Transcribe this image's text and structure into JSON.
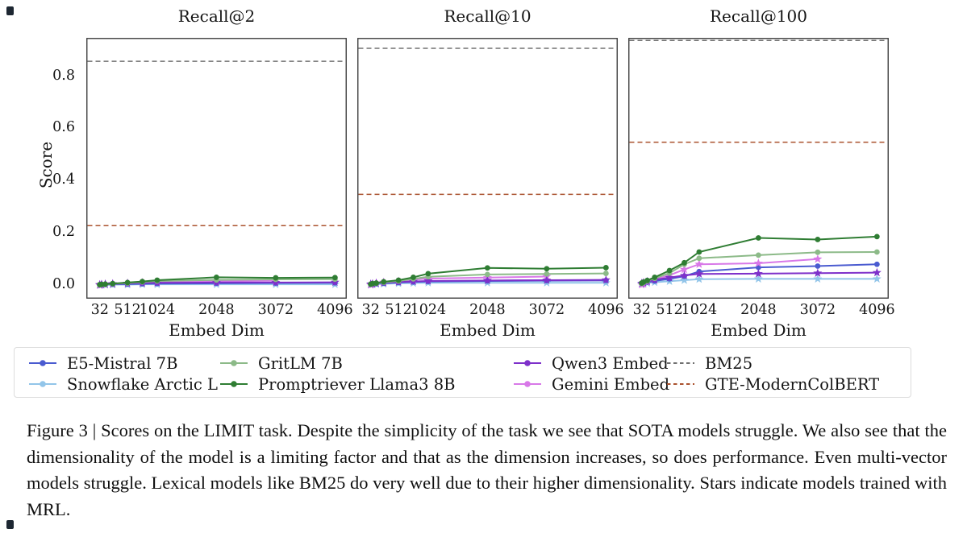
{
  "figure": {
    "caption": "Figure 3 | Scores on the LIMIT task. Despite the simplicity of the task we see that SOTA models struggle. We also see that the dimensionality of the model is a limiting factor and that as the dimension increases, so does performance. Even multi-vector models struggle. Lexical models like BM25 do very well due to their higher dimensionality. Stars indicate models trained with MRL."
  },
  "axes": {
    "y_label": "Score",
    "x_label": "Embed Dim",
    "x_ticks": [
      32,
      512,
      1024,
      2048,
      3072,
      4096
    ],
    "y_ticks": [
      "0.0",
      "0.2",
      "0.4",
      "0.6",
      "0.8"
    ],
    "xlim": [
      -200,
      4300
    ],
    "ylim": [
      -0.05,
      0.95
    ],
    "grid": false
  },
  "legend": {
    "position": "below",
    "entries": [
      {
        "label": "E5-Mistral 7B",
        "color": "#4a5bd0",
        "marker": "circle",
        "style": "solid"
      },
      {
        "label": "Snowflake Arctic L",
        "color": "#92c5e9",
        "marker": "star",
        "style": "solid"
      },
      {
        "label": "GritLM 7B",
        "color": "#8cba88",
        "marker": "circle",
        "style": "solid"
      },
      {
        "label": "Promptriever Llama3 8B",
        "color": "#2f7d33",
        "marker": "circle",
        "style": "solid"
      },
      {
        "label": "Qwen3 Embed",
        "color": "#7e30ca",
        "marker": "star",
        "style": "solid"
      },
      {
        "label": "Gemini Embed",
        "color": "#d878e8",
        "marker": "star",
        "style": "solid"
      },
      {
        "label": "BM25",
        "color": "#707070",
        "marker": "none",
        "style": "dashed"
      },
      {
        "label": "GTE-ModernColBERT",
        "color": "#aa512d",
        "marker": "none",
        "style": "dashed"
      }
    ]
  },
  "chart_data": [
    {
      "type": "line",
      "title": "Recall@2",
      "xlabel": "Embed Dim",
      "ylabel": "Score",
      "baselines": [
        {
          "name": "BM25",
          "value": 0.86
        },
        {
          "name": "GTE-ModernColBERT",
          "value": 0.23
        }
      ],
      "series": [
        {
          "name": "E5-Mistral 7B",
          "x": [
            32,
            64,
            128,
            256,
            512,
            768,
            1024,
            2048,
            3072,
            4096
          ],
          "y": [
            0.003,
            0.004,
            0.004,
            0.005,
            0.006,
            0.007,
            0.008,
            0.009,
            0.01,
            0.011
          ]
        },
        {
          "name": "Snowflake Arctic L",
          "x": [
            32,
            64,
            128,
            256,
            512,
            768,
            1024,
            2048,
            3072,
            4096
          ],
          "y": [
            0.002,
            0.003,
            0.003,
            0.004,
            0.004,
            0.005,
            0.005,
            0.005,
            0.005,
            0.005
          ]
        },
        {
          "name": "GritLM 7B",
          "x": [
            32,
            64,
            128,
            256,
            512,
            768,
            1024,
            2048,
            3072,
            4096
          ],
          "y": [
            0.003,
            0.004,
            0.005,
            0.007,
            0.01,
            0.014,
            0.018,
            0.022,
            0.024,
            0.025
          ]
        },
        {
          "name": "Promptriever Llama3 8B",
          "x": [
            32,
            64,
            128,
            256,
            512,
            768,
            1024,
            2048,
            3072,
            4096
          ],
          "y": [
            0.004,
            0.005,
            0.006,
            0.008,
            0.012,
            0.016,
            0.021,
            0.032,
            0.03,
            0.031
          ]
        },
        {
          "name": "Qwen3 Embed",
          "x": [
            32,
            64,
            128,
            256,
            512,
            768,
            1024,
            2048,
            3072,
            4096
          ],
          "y": [
            0.004,
            0.005,
            0.006,
            0.007,
            0.009,
            0.01,
            0.011,
            0.012,
            0.012,
            0.013
          ]
        },
        {
          "name": "Gemini Embed",
          "x": [
            32,
            64,
            128,
            256,
            512,
            768,
            1024,
            2048,
            3072
          ],
          "y": [
            0.002,
            0.003,
            0.005,
            0.007,
            0.009,
            0.012,
            0.014,
            0.017,
            0.019
          ]
        }
      ]
    },
    {
      "type": "line",
      "title": "Recall@10",
      "xlabel": "Embed Dim",
      "ylabel": "Score",
      "baselines": [
        {
          "name": "BM25",
          "value": 0.91
        },
        {
          "name": "GTE-ModernColBERT",
          "value": 0.35
        }
      ],
      "series": [
        {
          "name": "E5-Mistral 7B",
          "x": [
            32,
            64,
            128,
            256,
            512,
            768,
            1024,
            2048,
            3072,
            4096
          ],
          "y": [
            0.005,
            0.006,
            0.007,
            0.009,
            0.012,
            0.014,
            0.016,
            0.018,
            0.019,
            0.02
          ]
        },
        {
          "name": "Snowflake Arctic L",
          "x": [
            32,
            64,
            128,
            256,
            512,
            768,
            1024,
            2048,
            3072,
            4096
          ],
          "y": [
            0.004,
            0.005,
            0.006,
            0.007,
            0.009,
            0.01,
            0.011,
            0.011,
            0.011,
            0.011
          ]
        },
        {
          "name": "GritLM 7B",
          "x": [
            32,
            64,
            128,
            256,
            512,
            768,
            1024,
            2048,
            3072,
            4096
          ],
          "y": [
            0.005,
            0.007,
            0.009,
            0.013,
            0.018,
            0.026,
            0.034,
            0.043,
            0.045,
            0.047
          ]
        },
        {
          "name": "Promptriever Llama3 8B",
          "x": [
            32,
            64,
            128,
            256,
            512,
            768,
            1024,
            2048,
            3072,
            4096
          ],
          "y": [
            0.006,
            0.008,
            0.01,
            0.015,
            0.021,
            0.032,
            0.046,
            0.068,
            0.065,
            0.069
          ]
        },
        {
          "name": "Qwen3 Embed",
          "x": [
            32,
            64,
            128,
            256,
            512,
            768,
            1024,
            2048,
            3072,
            4096
          ],
          "y": [
            0.006,
            0.007,
            0.009,
            0.011,
            0.014,
            0.016,
            0.018,
            0.02,
            0.021,
            0.022
          ]
        },
        {
          "name": "Gemini Embed",
          "x": [
            32,
            64,
            128,
            256,
            512,
            768,
            1024,
            2048,
            3072
          ],
          "y": [
            0.003,
            0.005,
            0.01,
            0.013,
            0.017,
            0.023,
            0.027,
            0.031,
            0.035
          ]
        }
      ]
    },
    {
      "type": "line",
      "title": "Recall@100",
      "xlabel": "Embed Dim",
      "ylabel": "Score",
      "baselines": [
        {
          "name": "BM25",
          "value": 0.94
        },
        {
          "name": "GTE-ModernColBERT",
          "value": 0.55
        }
      ],
      "series": [
        {
          "name": "E5-Mistral 7B",
          "x": [
            32,
            64,
            128,
            256,
            512,
            768,
            1024,
            2048,
            3072,
            4096
          ],
          "y": [
            0.008,
            0.01,
            0.013,
            0.018,
            0.026,
            0.036,
            0.054,
            0.07,
            0.075,
            0.082
          ]
        },
        {
          "name": "Snowflake Arctic L",
          "x": [
            32,
            64,
            128,
            256,
            512,
            768,
            1024,
            2048,
            3072,
            4096
          ],
          "y": [
            0.006,
            0.008,
            0.01,
            0.013,
            0.017,
            0.021,
            0.025,
            0.026,
            0.026,
            0.026
          ]
        },
        {
          "name": "GritLM 7B",
          "x": [
            32,
            64,
            128,
            256,
            512,
            768,
            1024,
            2048,
            3072,
            4096
          ],
          "y": [
            0.008,
            0.012,
            0.018,
            0.028,
            0.048,
            0.082,
            0.105,
            0.117,
            0.128,
            0.129
          ]
        },
        {
          "name": "Promptriever Llama3 8B",
          "x": [
            32,
            64,
            128,
            256,
            512,
            768,
            1024,
            2048,
            3072,
            4096
          ],
          "y": [
            0.01,
            0.014,
            0.02,
            0.032,
            0.058,
            0.088,
            0.129,
            0.183,
            0.177,
            0.188
          ]
        },
        {
          "name": "Qwen3 Embed",
          "x": [
            32,
            64,
            128,
            256,
            512,
            768,
            1024,
            2048,
            3072,
            4096
          ],
          "y": [
            0.009,
            0.012,
            0.016,
            0.022,
            0.031,
            0.039,
            0.045,
            0.046,
            0.048,
            0.05
          ]
        },
        {
          "name": "Gemini Embed",
          "x": [
            32,
            64,
            128,
            256,
            512,
            768,
            1024,
            2048,
            3072
          ],
          "y": [
            0.004,
            0.006,
            0.014,
            0.024,
            0.04,
            0.062,
            0.082,
            0.086,
            0.102
          ]
        }
      ]
    }
  ]
}
